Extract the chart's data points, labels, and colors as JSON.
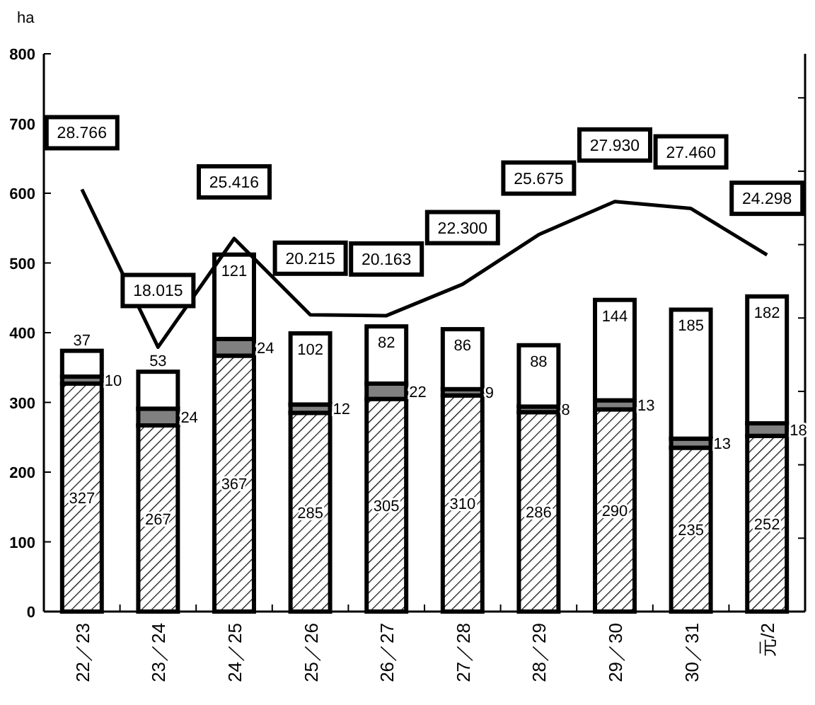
{
  "chart_data": {
    "type": "bar",
    "stacked": true,
    "ylabel": "ha",
    "categories": [
      "22／23",
      "23／24",
      "24／25",
      "25／26",
      "26／27",
      "27／28",
      "28／29",
      "29／30",
      "30／31",
      "元/2"
    ],
    "ylim": [
      0,
      800
    ],
    "yticks": [
      0,
      100,
      200,
      300,
      400,
      500,
      600,
      700,
      800
    ],
    "y2lim": [
      0,
      38
    ],
    "y2ticks": [
      {
        "value": 0,
        "label": null
      },
      {
        "value": 5,
        "label": null
      },
      {
        "value": 10,
        "label": null
      },
      {
        "value": 15,
        "label": null
      },
      {
        "value": 20,
        "label": null
      },
      {
        "value": 25,
        "label": null
      },
      {
        "value": 30,
        "label": null
      },
      {
        "value": 35,
        "label": null
      }
    ],
    "tick_labels": "xy",
    "data_labels": true,
    "grid": false,
    "series": [
      {
        "color": "#000000",
        "values": [
          327,
          267,
          367,
          285,
          305,
          310,
          286,
          290,
          235,
          252
        ]
      },
      {
        "color": "#808080",
        "values": [
          10,
          24,
          24,
          12,
          22,
          9,
          8,
          13,
          13,
          18
        ]
      },
      {
        "color": "#ffffff",
        "values": [
          37,
          53,
          121,
          102,
          82,
          86,
          88,
          144,
          185,
          182
        ]
      },
      {
        "type": "line",
        "axis": "y2",
        "color": "#000000",
        "marker": "none",
        "values": [
          28.766,
          18.015,
          25.416,
          20.215,
          20.163,
          22.3,
          25.675,
          27.93,
          27.46,
          24.298
        ],
        "value_labels": [
          "28.766",
          "18.015",
          "25.416",
          "20.215",
          "20.163",
          "22.300",
          "25.675",
          "27.930",
          "27.460",
          "24.298"
        ]
      }
    ]
  }
}
